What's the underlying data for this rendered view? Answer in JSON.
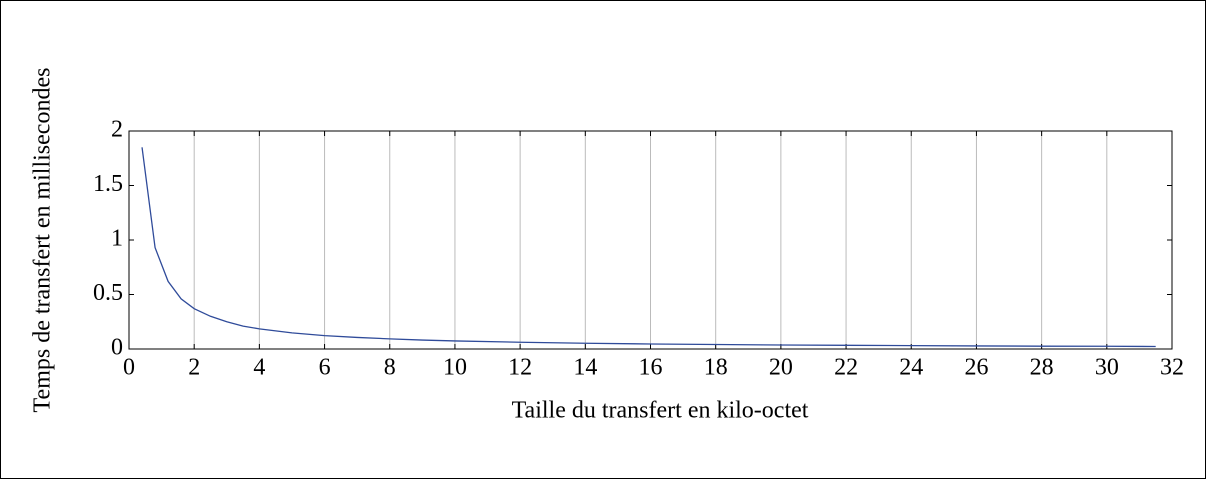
{
  "chart_data": {
    "type": "line",
    "xlabel": "Taille du transfert en kilo-octet",
    "ylabel": "Temps de transfert en millisecondes",
    "x": [
      0.4,
      0.8,
      1.2,
      1.6,
      2,
      2.5,
      3,
      3.5,
      4,
      5,
      6,
      7,
      8,
      9,
      10,
      12,
      14,
      16,
      18,
      20,
      22,
      24,
      26,
      28,
      30,
      31.5
    ],
    "series": [
      {
        "color": "#2f4b9a",
        "values": [
          1.85,
          0.93,
          0.62,
          0.46,
          0.37,
          0.3,
          0.25,
          0.21,
          0.185,
          0.148,
          0.123,
          0.106,
          0.093,
          0.082,
          0.074,
          0.062,
          0.053,
          0.046,
          0.041,
          0.037,
          0.034,
          0.031,
          0.028,
          0.026,
          0.025,
          0.023
        ]
      }
    ],
    "xlim": [
      0,
      32
    ],
    "ylim": [
      0,
      2
    ],
    "xticks": [
      0,
      2,
      4,
      6,
      8,
      10,
      12,
      14,
      16,
      18,
      20,
      22,
      24,
      26,
      28,
      30,
      32
    ],
    "yticks": [
      0,
      0.5,
      1,
      1.5,
      2
    ],
    "grid": "x"
  }
}
